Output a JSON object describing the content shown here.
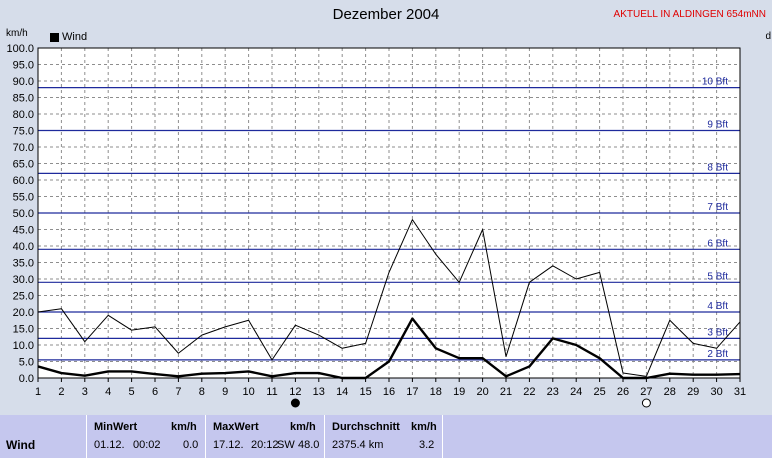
{
  "title": "Dezember 2004",
  "aktuell_label": "AKTUELL IN ALDINGEN 654mNN",
  "y_unit": "km/h",
  "right_unit": "d",
  "legend": "Wind",
  "colors": {
    "background": "#d6ddea",
    "plot": "#ffffff",
    "beaufort": "#1e2a9c",
    "series": "#000000"
  },
  "chart_data": {
    "type": "line",
    "title": "Dezember 2004",
    "ylabel": "km/h",
    "ylim": [
      0,
      100
    ],
    "y_ticks": [
      "0.0",
      "5.0",
      "10.0",
      "15.0",
      "20.0",
      "25.0",
      "30.0",
      "35.0",
      "40.0",
      "45.0",
      "50.0",
      "55.0",
      "60.0",
      "65.0",
      "70.0",
      "75.0",
      "80.0",
      "85.0",
      "90.0",
      "95.0",
      "100.0"
    ],
    "x": [
      1,
      2,
      3,
      4,
      5,
      6,
      7,
      8,
      9,
      10,
      11,
      12,
      13,
      14,
      15,
      16,
      17,
      18,
      19,
      20,
      21,
      22,
      23,
      24,
      25,
      26,
      27,
      28,
      29,
      30,
      31
    ],
    "series": [
      {
        "name": "Wind",
        "role": "mean",
        "values": [
          3.5,
          1.5,
          0.7,
          2,
          2,
          1.2,
          0.5,
          1.3,
          1.5,
          2,
          0.5,
          1.5,
          1.5,
          0,
          0,
          5,
          18,
          9,
          6,
          6,
          0.5,
          3.5,
          12,
          10,
          6,
          0,
          0,
          1.3,
          1,
          1,
          1.2
        ]
      },
      {
        "role": "max",
        "values": [
          20,
          21,
          11,
          19,
          14.5,
          15.5,
          7.5,
          13,
          15.5,
          17.5,
          5.5,
          16,
          13,
          9,
          10.5,
          32,
          48,
          37.5,
          29,
          45,
          6.5,
          29,
          34,
          30,
          32,
          1.5,
          0.5,
          17.5,
          10.5,
          9,
          17
        ]
      }
    ],
    "beaufort": [
      {
        "label": "2 Bft",
        "kmh": 5.5
      },
      {
        "label": "3 Bft",
        "kmh": 12
      },
      {
        "label": "4 Bft",
        "kmh": 20
      },
      {
        "label": "5 Bft",
        "kmh": 29
      },
      {
        "label": "6 Bft",
        "kmh": 39
      },
      {
        "label": "7 Bft",
        "kmh": 50
      },
      {
        "label": "8 Bft",
        "kmh": 62
      },
      {
        "label": "9 Bft",
        "kmh": 75
      },
      {
        "label": "10 Bft",
        "kmh": 88
      }
    ],
    "moon_phases": [
      {
        "day": 12,
        "phase": "new"
      },
      {
        "day": 27,
        "phase": "full"
      }
    ],
    "grid": true
  },
  "table": {
    "row_label": "Wind",
    "min": {
      "header": "MinWert",
      "unit": "km/h",
      "date": "01.12.",
      "time": "00:02",
      "value": "0.0"
    },
    "max": {
      "header": "MaxWert",
      "unit": "km/h",
      "date": "17.12.",
      "time": "20:12",
      "dir": "SW",
      "value": "48.0"
    },
    "avg": {
      "header": "Durchschnitt",
      "unit": "km/h",
      "dist": "2375.4 km",
      "value": "3.2"
    }
  }
}
